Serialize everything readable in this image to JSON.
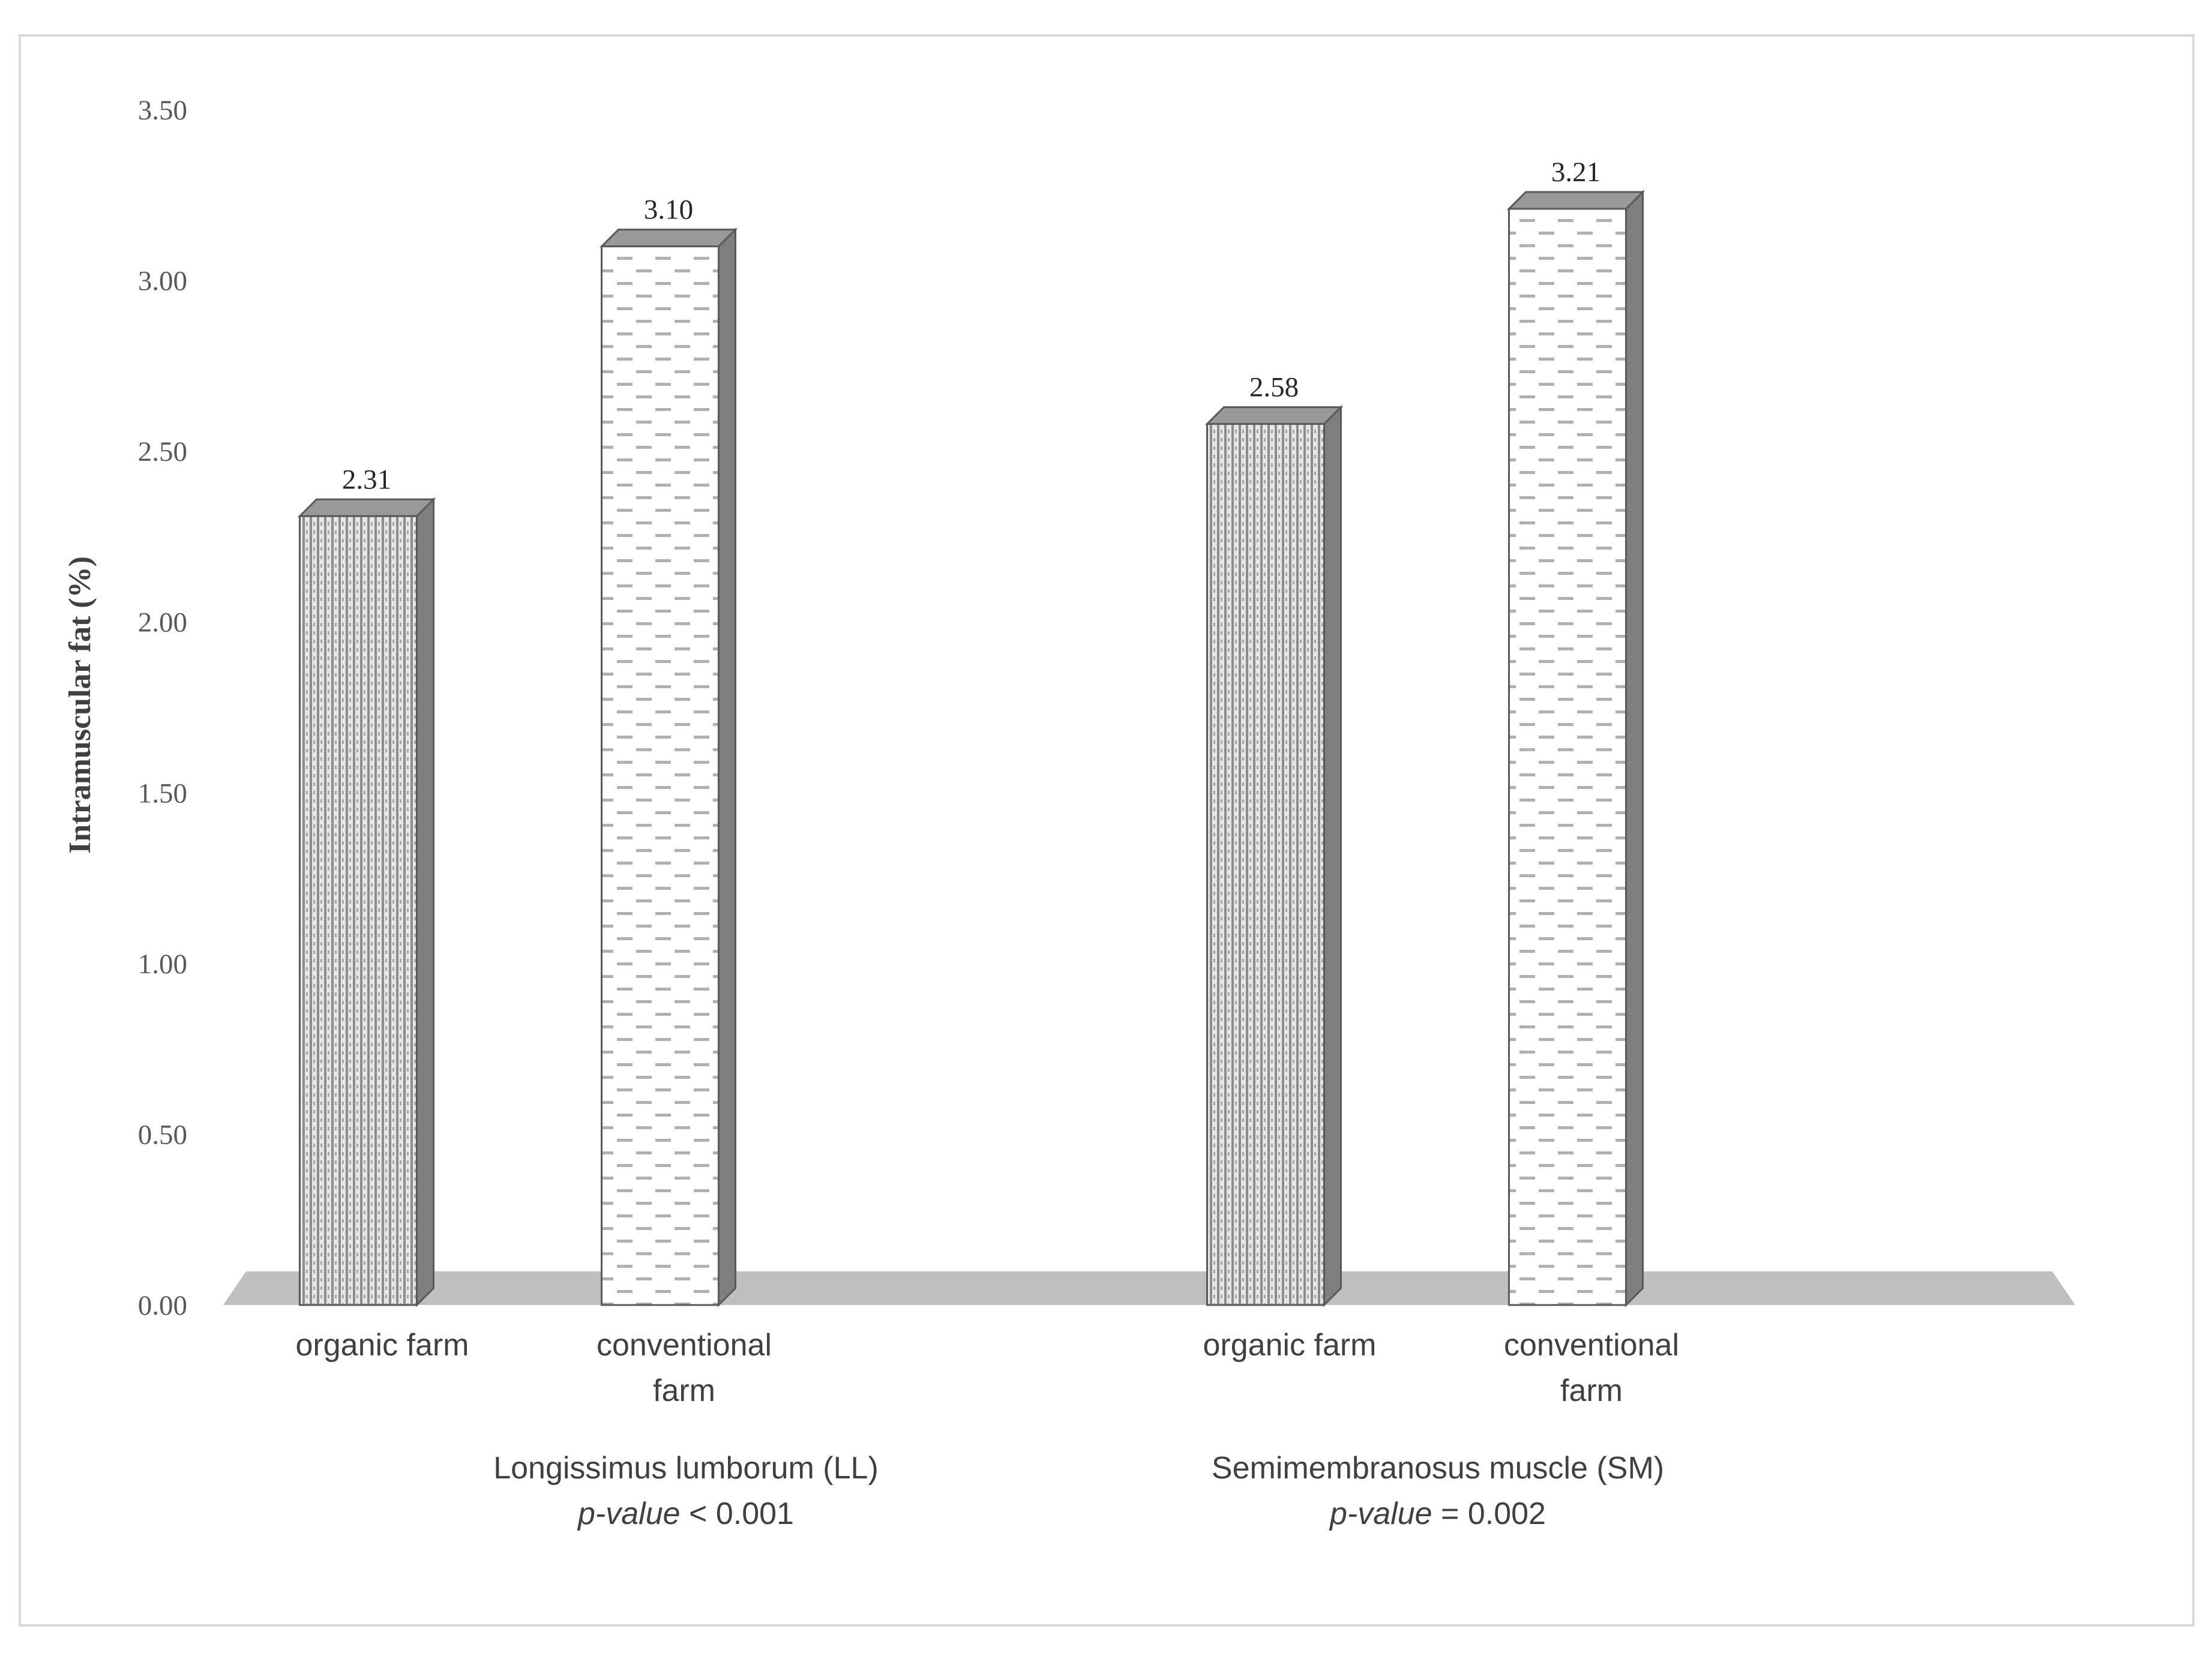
{
  "chart_data": {
    "type": "bar",
    "ylabel": "Intramuscular fat  (%)",
    "ylim": [
      0,
      3.5
    ],
    "yticks": [
      "0.00",
      "0.50",
      "1.00",
      "1.50",
      "2.00",
      "2.50",
      "3.00",
      "3.50"
    ],
    "groups": [
      {
        "name": "Longissimus lumborum (LL)",
        "pvalue_label": "p-value",
        "pvalue_text": " < 0.001",
        "bars": [
          {
            "category": [
              "organic farm"
            ],
            "value": 2.31,
            "label": "2.31",
            "pattern": "organic"
          },
          {
            "category": [
              "conventional",
              "farm"
            ],
            "value": 3.1,
            "label": "3.10",
            "pattern": "conventional"
          }
        ]
      },
      {
        "name": "Semimembranosus muscle  (SM)",
        "pvalue_label": "p-value",
        "pvalue_text": " = 0.002",
        "bars": [
          {
            "category": [
              "organic farm"
            ],
            "value": 2.58,
            "label": "2.58",
            "pattern": "organic"
          },
          {
            "category": [
              "conventional",
              "farm"
            ],
            "value": 3.21,
            "label": "3.21",
            "pattern": "conventional"
          }
        ]
      }
    ],
    "colors": {
      "floor": "#bfbfbf",
      "bar_dark": "#8c8c8c",
      "bar_edge": "#595959",
      "text": "#404040"
    }
  }
}
